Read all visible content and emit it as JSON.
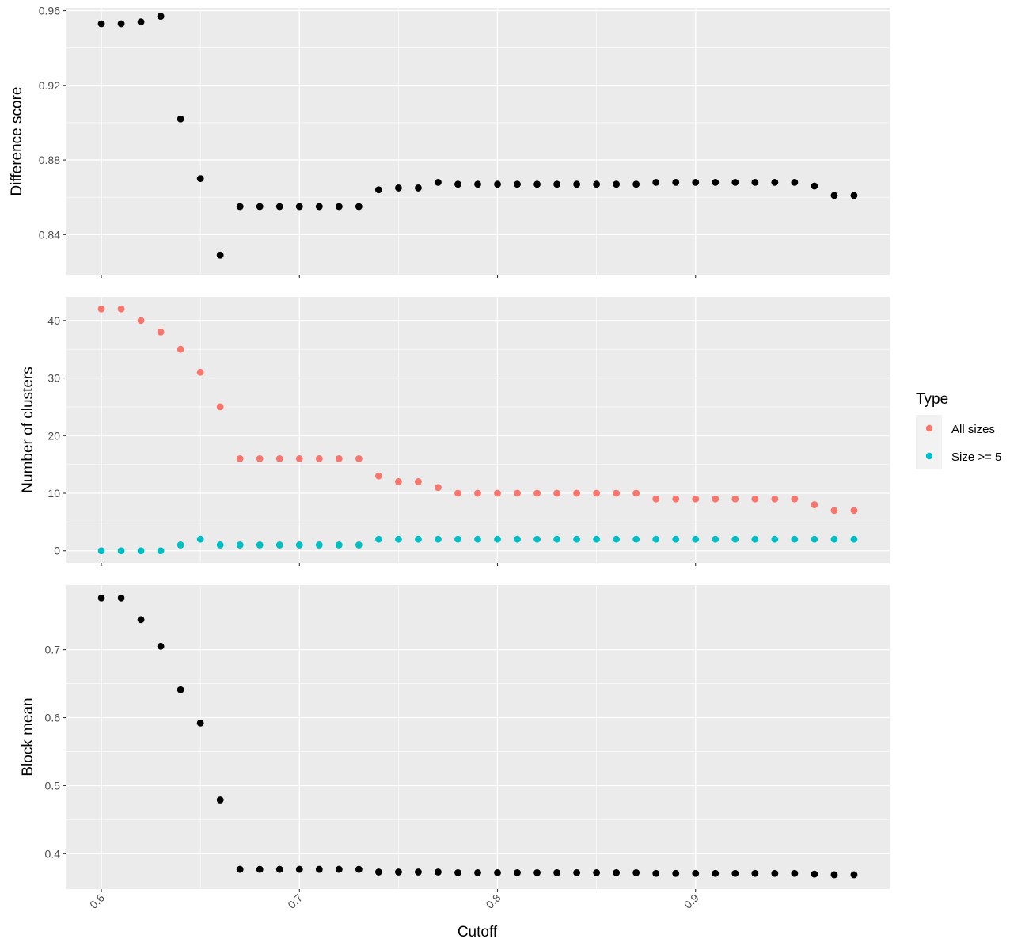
{
  "chart_data": {
    "type": "scatter",
    "x_title": "Cutoff",
    "x_tick_labels": [
      "0.6",
      "0.7",
      "0.8",
      "0.9"
    ],
    "x_ticks": [
      0.6,
      0.7,
      0.8,
      0.9
    ],
    "xlim": [
      0.582,
      0.998
    ],
    "x": [
      0.6,
      0.61,
      0.62,
      0.63,
      0.64,
      0.65,
      0.66,
      0.67,
      0.68,
      0.69,
      0.7,
      0.71,
      0.72,
      0.73,
      0.74,
      0.75,
      0.76,
      0.77,
      0.78,
      0.79,
      0.8,
      0.81,
      0.82,
      0.83,
      0.84,
      0.85,
      0.86,
      0.87,
      0.88,
      0.89,
      0.9,
      0.91,
      0.92,
      0.93,
      0.94,
      0.95,
      0.96,
      0.97,
      0.98
    ],
    "panels": [
      {
        "name": "difference",
        "ylabel": "Difference score",
        "ylim": [
          0.8185,
          0.9615
        ],
        "y_ticks": [
          0.84,
          0.88,
          0.92,
          0.96
        ],
        "y_tick_labels": [
          "0.84",
          "0.88",
          "0.92",
          "0.96"
        ],
        "series": [
          {
            "color": "#000000",
            "values": [
              0.953,
              0.953,
              0.954,
              0.957,
              0.902,
              0.87,
              0.829,
              0.855,
              0.855,
              0.855,
              0.855,
              0.855,
              0.855,
              0.855,
              0.864,
              0.865,
              0.865,
              0.868,
              0.867,
              0.867,
              0.867,
              0.867,
              0.867,
              0.867,
              0.867,
              0.867,
              0.867,
              0.867,
              0.868,
              0.868,
              0.868,
              0.868,
              0.868,
              0.868,
              0.868,
              0.868,
              0.866,
              0.861,
              0.861
            ]
          }
        ]
      },
      {
        "name": "clusters",
        "ylabel": "Number of clusters",
        "ylim": [
          -2.1,
          44.1
        ],
        "y_ticks": [
          0,
          10,
          20,
          30,
          40
        ],
        "y_tick_labels": [
          "0",
          "10",
          "20",
          "30",
          "40"
        ],
        "series": [
          {
            "name": "All sizes",
            "color": "#F8766D",
            "values": [
              42,
              42,
              40,
              38,
              35,
              31,
              25,
              16,
              16,
              16,
              16,
              16,
              16,
              16,
              13,
              12,
              12,
              11,
              10,
              10,
              10,
              10,
              10,
              10,
              10,
              10,
              10,
              10,
              9,
              9,
              9,
              9,
              9,
              9,
              9,
              9,
              8,
              7,
              7
            ]
          },
          {
            "name": "Size >= 5",
            "color": "#00BFC4",
            "values": [
              0,
              0,
              0,
              0,
              1,
              2,
              1,
              1,
              1,
              1,
              1,
              1,
              1,
              1,
              2,
              2,
              2,
              2,
              2,
              2,
              2,
              2,
              2,
              2,
              2,
              2,
              2,
              2,
              2,
              2,
              2,
              2,
              2,
              2,
              2,
              2,
              2,
              2,
              2
            ]
          }
        ]
      },
      {
        "name": "block",
        "ylabel": "Block mean",
        "ylim": [
          0.348,
          0.795
        ],
        "y_ticks": [
          0.4,
          0.5,
          0.6,
          0.7
        ],
        "y_tick_labels": [
          "0.4",
          "0.5",
          "0.6",
          "0.7"
        ],
        "series": [
          {
            "color": "#000000",
            "values": [
              0.776,
              0.776,
              0.744,
              0.705,
              0.641,
              0.592,
              0.479,
              0.377,
              0.377,
              0.377,
              0.377,
              0.377,
              0.377,
              0.377,
              0.373,
              0.373,
              0.373,
              0.373,
              0.372,
              0.372,
              0.372,
              0.372,
              0.372,
              0.372,
              0.372,
              0.372,
              0.372,
              0.372,
              0.371,
              0.371,
              0.371,
              0.371,
              0.371,
              0.371,
              0.371,
              0.371,
              0.37,
              0.369,
              0.369
            ]
          }
        ]
      }
    ],
    "legend": {
      "title": "Type",
      "position": "right",
      "items": [
        {
          "label": "All sizes",
          "color": "#F8766D"
        },
        {
          "label": "Size >= 5",
          "color": "#00BFC4"
        }
      ]
    },
    "panel_background": "#EBEBEB",
    "grid": true
  }
}
